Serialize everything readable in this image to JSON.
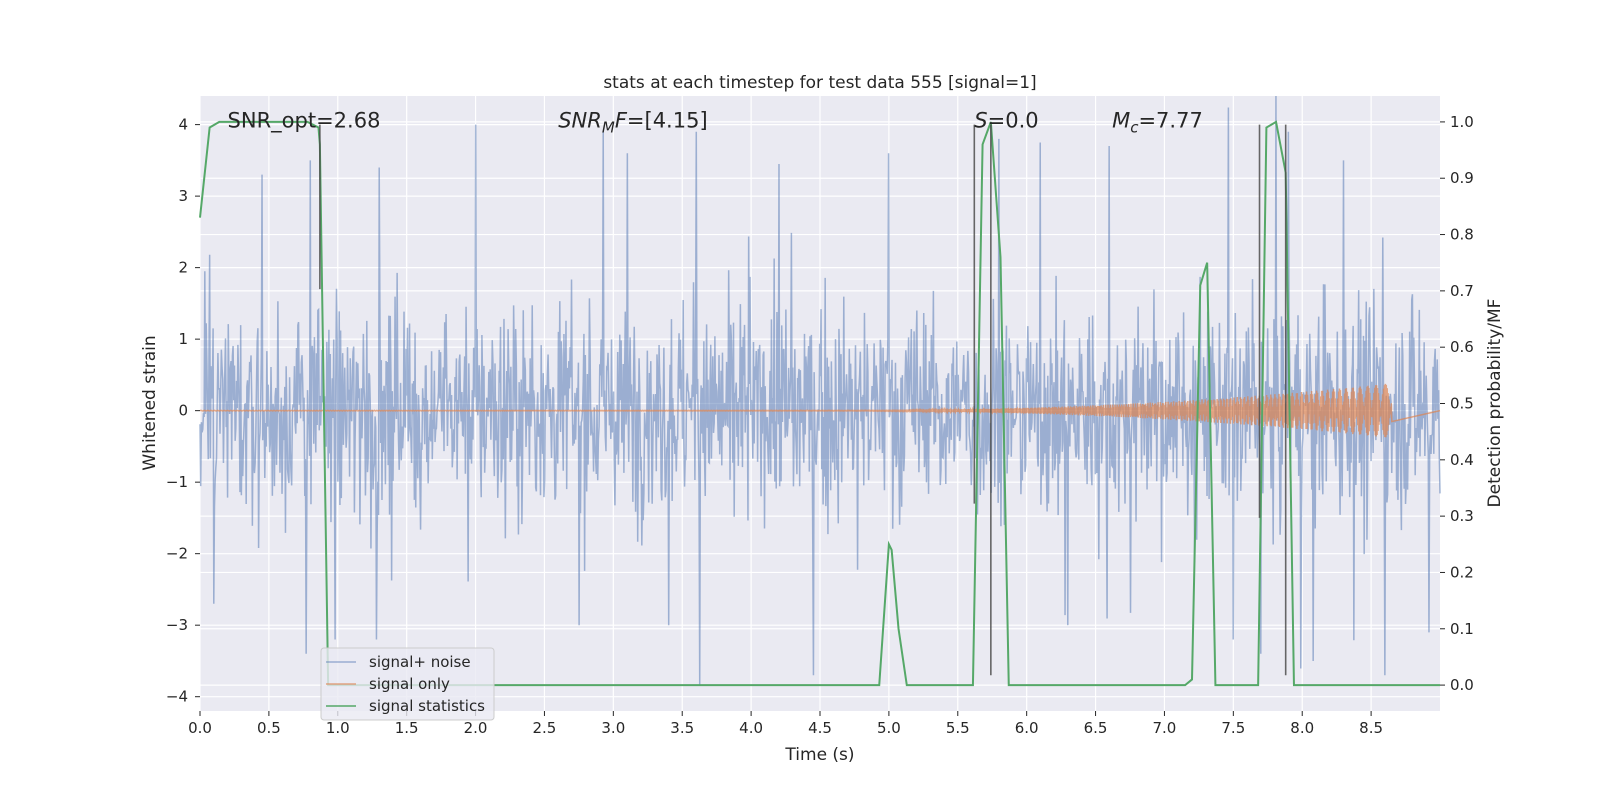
{
  "chart_data": {
    "type": "line",
    "title": "stats at each timestep for test data 555 [signal=1]",
    "xlabel": "Time (s)",
    "ylabel": "Whitened strain",
    "y2label": "Detection probability/MF",
    "xlim": [
      0.0,
      9.0
    ],
    "ylim": [
      -4.2,
      4.4
    ],
    "y2lim": [
      -0.046,
      1.046
    ],
    "xticks": [
      "0.0",
      "0.5",
      "1.0",
      "1.5",
      "2.0",
      "2.5",
      "3.0",
      "3.5",
      "4.0",
      "4.5",
      "5.0",
      "5.5",
      "6.0",
      "6.5",
      "7.0",
      "7.5",
      "8.0",
      "8.5"
    ],
    "xtick_values": [
      0.0,
      0.5,
      1.0,
      1.5,
      2.0,
      2.5,
      3.0,
      3.5,
      4.0,
      4.5,
      5.0,
      5.5,
      6.0,
      6.5,
      7.0,
      7.5,
      8.0,
      8.5
    ],
    "yticks": [
      "−4",
      "−3",
      "−2",
      "−1",
      "0",
      "1",
      "2",
      "3",
      "4"
    ],
    "ytick_values": [
      -4,
      -3,
      -2,
      -1,
      0,
      1,
      2,
      3,
      4
    ],
    "y2ticks": [
      "0.0",
      "0.1",
      "0.2",
      "0.3",
      "0.4",
      "0.5",
      "0.6",
      "0.7",
      "0.8",
      "0.9",
      "1.0"
    ],
    "y2tick_values": [
      0.0,
      0.1,
      0.2,
      0.3,
      0.4,
      0.5,
      0.6,
      0.7,
      0.8,
      0.9,
      1.0
    ],
    "grid": true,
    "legend_position": "bottom-left",
    "annotations": [
      {
        "text": "SNR_opt=2.68",
        "x": 0.2
      },
      {
        "text_parts": [
          {
            "t": "SNR",
            "i": true
          },
          {
            "t": "M",
            "i": true,
            "sub": true
          },
          {
            "t": "F",
            "i": true
          },
          {
            "t": "=[4.15]",
            "i": false
          }
        ],
        "x": 2.6
      },
      {
        "text_parts": [
          {
            "t": "S",
            "i": true
          },
          {
            "t": "=0.0",
            "i": false
          }
        ],
        "x": 5.62
      },
      {
        "text_parts": [
          {
            "t": "M",
            "i": true
          },
          {
            "t": "c",
            "i": true,
            "sub": true
          },
          {
            "t": "=7.77",
            "i": false
          }
        ],
        "x": 6.62
      }
    ],
    "vlines": [
      {
        "x": 0.87,
        "ymin": 1.7,
        "ymax": 4.0
      },
      {
        "x": 5.62,
        "ymin": -1.3,
        "ymax": 4.0
      },
      {
        "x": 5.74,
        "ymin": -3.7,
        "ymax": 4.0
      },
      {
        "x": 7.69,
        "ymin": -1.5,
        "ymax": 4.0
      },
      {
        "x": 7.88,
        "ymin": -3.7,
        "ymax": 4.0
      }
    ],
    "series": [
      {
        "name": "signal+ noise",
        "color": "#4c72b0",
        "kind": "noise",
        "t_start": 0.0,
        "t_end": 9.0,
        "samples": 1800,
        "band_upper": 1.7,
        "band_lower": -1.6,
        "peaks_up": [
          [
            0.8,
            3.5
          ],
          [
            1.3,
            3.4
          ],
          [
            2.0,
            4.0
          ],
          [
            3.6,
            3.9
          ],
          [
            5.0,
            3.6
          ],
          [
            5.8,
            3.8
          ],
          [
            6.6,
            3.7
          ],
          [
            7.9,
            3.9
          ],
          [
            8.6,
            3.95
          ],
          [
            0.45,
            3.3
          ],
          [
            4.2,
            3.45
          ],
          [
            8.3,
            3.5
          ],
          [
            6.1,
            3.75
          ],
          [
            3.1,
            3.6
          ]
        ],
        "peaks_down": [
          [
            0.77,
            -3.4
          ],
          [
            0.98,
            -3.2
          ],
          [
            2.75,
            -3.0
          ],
          [
            3.4,
            -3.0
          ],
          [
            4.45,
            -3.7
          ],
          [
            7.7,
            -3.4
          ],
          [
            8.08,
            -3.5
          ],
          [
            8.6,
            -3.7
          ],
          [
            8.92,
            -3.1
          ],
          [
            0.1,
            -2.7
          ],
          [
            1.28,
            -3.2
          ],
          [
            6.3,
            -3.0
          ],
          [
            7.5,
            -3.2
          ]
        ]
      },
      {
        "name": "signal only",
        "color": "#dd8452",
        "kind": "chirp",
        "t_start": 0.0,
        "t_end": 8.65,
        "chirp_start": 4.6,
        "amp_max": 0.38
      },
      {
        "name": "signal statistics",
        "color": "#55a868",
        "axis": "y2",
        "x": [
          0.0,
          0.07,
          0.14,
          0.78,
          0.86,
          0.87,
          0.93,
          4.93,
          5.0,
          5.02,
          5.07,
          5.13,
          5.55,
          5.61,
          5.68,
          5.74,
          5.81,
          5.87,
          7.15,
          7.2,
          7.26,
          7.31,
          7.37,
          7.62,
          7.68,
          7.74,
          7.81,
          7.88,
          7.94,
          9.0
        ],
        "y": [
          0.83,
          0.99,
          1.0,
          1.0,
          0.99,
          0.96,
          0.0,
          0.0,
          0.25,
          0.24,
          0.1,
          0.0,
          0.0,
          0.0,
          0.96,
          1.0,
          0.76,
          0.0,
          0.0,
          0.01,
          0.71,
          0.75,
          0.0,
          0.0,
          0.0,
          0.99,
          1.0,
          0.91,
          0.0,
          0.0
        ]
      }
    ]
  }
}
